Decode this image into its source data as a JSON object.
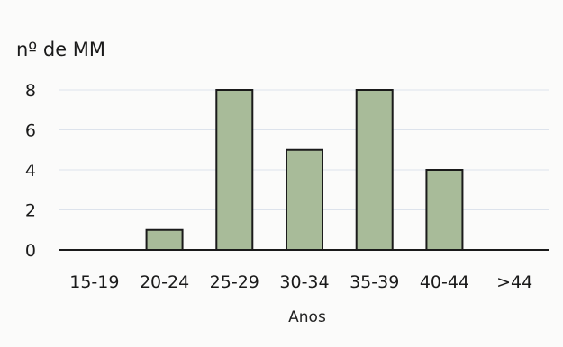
{
  "chart_data": {
    "type": "bar",
    "categories": [
      "15-19",
      "20-24",
      "25-29",
      "30-34",
      "35-39",
      "40-44",
      ">44"
    ],
    "values": [
      0,
      1,
      8,
      5,
      8,
      4,
      0
    ],
    "title": "",
    "ylabel": "nº de MM",
    "xlabel": "Anos",
    "ylim": [
      0,
      8
    ],
    "yticks": [
      0,
      2,
      4,
      6,
      8
    ],
    "grid": true,
    "bar_color": "#a8bb99",
    "bar_edge_color": "#1a1a1a",
    "grid_color": "#dde3ec"
  }
}
